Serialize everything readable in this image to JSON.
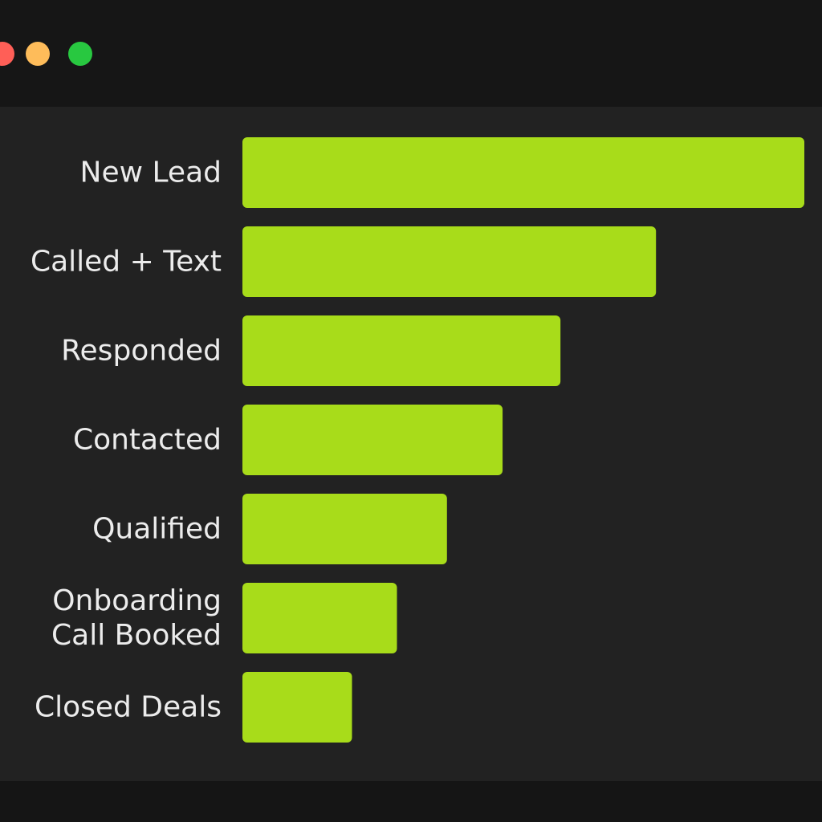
{
  "window": {
    "controls": [
      {
        "name": "close-button",
        "icon": "close-dot-icon",
        "color": "#ff5f57"
      },
      {
        "name": "minimize-button",
        "icon": "minimize-dot-icon",
        "color": "#febc5a"
      },
      {
        "name": "maximize-button",
        "icon": "maximize-dot-icon",
        "color": "#28c840"
      }
    ]
  },
  "chart_data": {
    "type": "bar",
    "orientation": "horizontal",
    "title": "",
    "xlabel": "",
    "ylabel": "",
    "categories": [
      "New Lead",
      "Called + Text",
      "Responded",
      "Contacted",
      "Qualified",
      "Onboarding Call Booked",
      "Closed Deals"
    ],
    "category_label_lines": [
      [
        "New Lead"
      ],
      [
        "Called + Text"
      ],
      [
        "Responded"
      ],
      [
        "Contacted"
      ],
      [
        "Qualified"
      ],
      [
        "Onboarding",
        "Call Booked"
      ],
      [
        "Closed Deals"
      ]
    ],
    "values": [
      100,
      73.6,
      56.6,
      46.3,
      36.4,
      27.5,
      19.5
    ],
    "xlim": [
      0,
      100
    ],
    "bar_color": "#a8dc1a",
    "grid": false,
    "legend": "none"
  }
}
